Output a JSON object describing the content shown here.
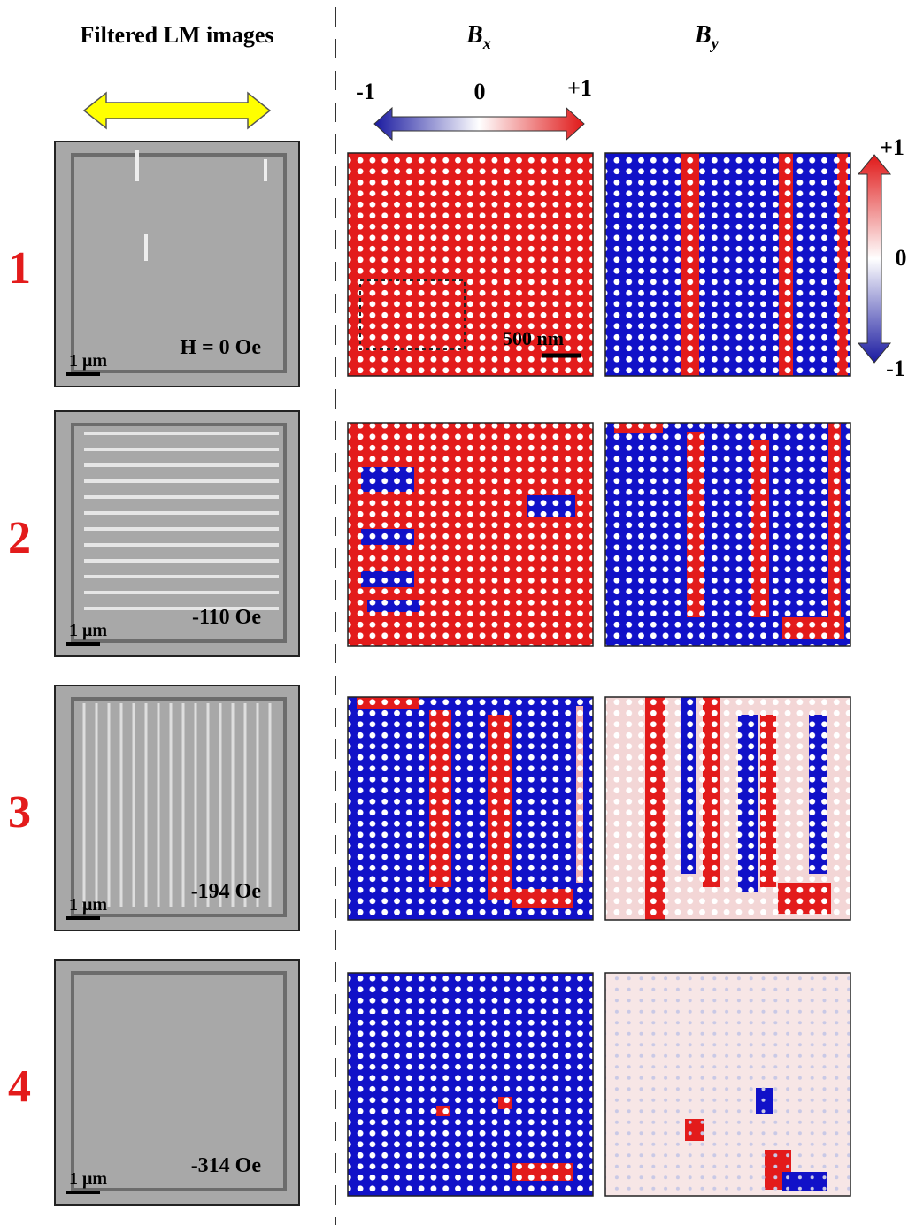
{
  "header": {
    "left_title": "Filtered LM images",
    "bx": {
      "symbol": "B",
      "subscript": "x"
    },
    "by": {
      "symbol": "B",
      "subscript": "y"
    }
  },
  "colorbar_horizontal": {
    "min": "-1",
    "mid": "0",
    "max": "+1"
  },
  "colorbar_vertical": {
    "max": "+1",
    "mid": "0",
    "min": "-1"
  },
  "bx_scale_bar": "500 nm",
  "rows": [
    {
      "number": "1",
      "field": "H = 0 Oe",
      "scale_bar": "1 μm"
    },
    {
      "number": "2",
      "field": "-110 Oe",
      "scale_bar": "1 μm"
    },
    {
      "number": "3",
      "field": "-194 Oe",
      "scale_bar": "1 μm"
    },
    {
      "number": "4",
      "field": "-314 Oe",
      "scale_bar": "1 μm"
    }
  ]
}
